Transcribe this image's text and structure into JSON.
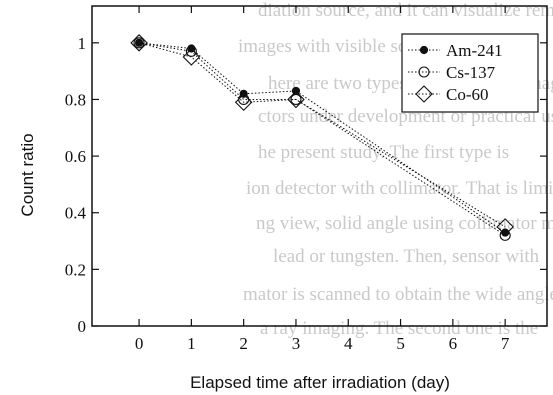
{
  "background_text": [
    "diation source, and it can visualize remote",
    "images with visible scene.",
    "here are two types of gamma ray imaging",
    "ctors under development or practical use",
    "he present study. The first type is",
    "ion detector with collimator. That is limite",
    "ng view, solid angle using collimator made",
    "lead or tungsten. Then, sensor with",
    "mator is scanned to obtain the wide angle of",
    "a ray imaging. The second one is the"
  ],
  "chart_data": {
    "type": "line",
    "xlabel": "Elapsed time after irradiation (day)",
    "ylabel": "Count ratio",
    "x_ticks": [
      0,
      1,
      2,
      3,
      4,
      5,
      6,
      7
    ],
    "y_ticks": [
      0,
      0.2,
      0.4,
      0.6,
      0.8,
      1
    ],
    "y_tick_labels": [
      "0",
      "0.2",
      "0.4",
      "0.6",
      "0.8",
      "1"
    ],
    "xlim": [
      -0.9,
      7.8
    ],
    "ylim": [
      0,
      1.13
    ],
    "grid": false,
    "legend_position": "top-right",
    "series": [
      {
        "name": "Am-241",
        "marker": "filled-circle",
        "x": [
          0,
          1,
          2,
          3,
          7
        ],
        "y": [
          1.0,
          0.98,
          0.82,
          0.83,
          0.33
        ]
      },
      {
        "name": "Cs-137",
        "marker": "open-circle",
        "x": [
          0,
          1,
          2,
          3,
          7
        ],
        "y": [
          1.0,
          0.97,
          0.8,
          0.8,
          0.32
        ]
      },
      {
        "name": "Co-60",
        "marker": "open-diamond",
        "x": [
          0,
          1,
          2,
          3,
          7
        ],
        "y": [
          1.0,
          0.95,
          0.79,
          0.8,
          0.35
        ]
      }
    ]
  }
}
